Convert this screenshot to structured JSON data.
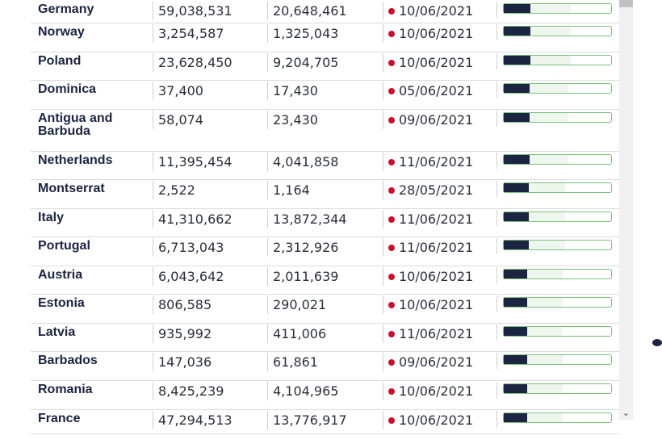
{
  "table": {
    "rows": [
      {
        "country": "Germany",
        "first": "59,038,531",
        "second": "20,648,461",
        "date": "10/06/2021",
        "progress": 0.25
      },
      {
        "country": "Norway",
        "first": "3,254,587",
        "second": "1,325,043",
        "date": "10/06/2021",
        "progress": 0.25
      },
      {
        "country": "Poland",
        "first": "23,628,450",
        "second": "9,204,705",
        "date": "10/06/2021",
        "progress": 0.25
      },
      {
        "country": "Dominica",
        "first": "37,400",
        "second": "17,430",
        "date": "05/06/2021",
        "progress": 0.24
      },
      {
        "country": "Antigua and Barbuda",
        "first": "58,074",
        "second": "23,430",
        "date": "09/06/2021",
        "progress": 0.24
      },
      {
        "country": "Netherlands",
        "first": "11,395,454",
        "second": "4,041,858",
        "date": "11/06/2021",
        "progress": 0.24
      },
      {
        "country": "Montserrat",
        "first": "2,522",
        "second": "1,164",
        "date": "28/05/2021",
        "progress": 0.23
      },
      {
        "country": "Italy",
        "first": "41,310,662",
        "second": "13,872,344",
        "date": "11/06/2021",
        "progress": 0.23
      },
      {
        "country": "Portugal",
        "first": "6,713,043",
        "second": "2,312,926",
        "date": "11/06/2021",
        "progress": 0.23
      },
      {
        "country": "Austria",
        "first": "6,043,642",
        "second": "2,011,639",
        "date": "10/06/2021",
        "progress": 0.22
      },
      {
        "country": "Estonia",
        "first": "806,585",
        "second": "290,021",
        "date": "10/06/2021",
        "progress": 0.22
      },
      {
        "country": "Latvia",
        "first": "935,992",
        "second": "411,006",
        "date": "11/06/2021",
        "progress": 0.22
      },
      {
        "country": "Barbados",
        "first": "147,036",
        "second": "61,861",
        "date": "09/06/2021",
        "progress": 0.22
      },
      {
        "country": "Romania",
        "first": "8,425,239",
        "second": "4,104,965",
        "date": "10/06/2021",
        "progress": 0.22
      },
      {
        "country": "France",
        "first": "47,294,513",
        "second": "13,776,917",
        "date": "10/06/2021",
        "progress": 0.22
      }
    ]
  },
  "colors": {
    "bar_fill": "#1b2440",
    "bar_border": "#7cc07c",
    "dot": "#c8102e"
  },
  "scrollbar": {
    "down_icon": "chevron-down-icon"
  }
}
